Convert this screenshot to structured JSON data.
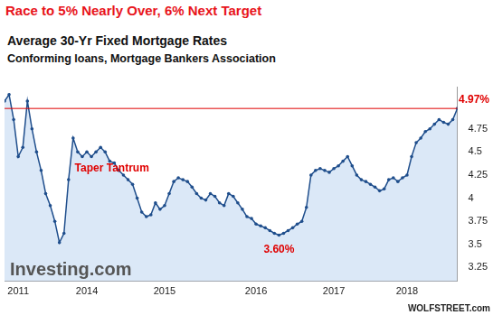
{
  "chart_data": {
    "type": "line",
    "title": "Race to 5% Nearly Over, 6% Next Target",
    "subtitle": [
      "Average 30-Yr Fixed Mortgage Rates",
      "Conforming loans, Mortgage Bankers Association"
    ],
    "categories": [
      null,
      null,
      null,
      "2011",
      null,
      null,
      null,
      null,
      null,
      null,
      null,
      null,
      null,
      null,
      null,
      null,
      null,
      null,
      "2014",
      null,
      null,
      null,
      null,
      null,
      null,
      null,
      null,
      null,
      null,
      null,
      null,
      null,
      null,
      null,
      null,
      "2015",
      null,
      null,
      null,
      null,
      null,
      null,
      null,
      null,
      null,
      null,
      null,
      null,
      null,
      null,
      null,
      null,
      null,
      null,
      null,
      "2016",
      null,
      null,
      null,
      null,
      null,
      null,
      null,
      null,
      null,
      null,
      null,
      null,
      null,
      null,
      null,
      null,
      "2017",
      null,
      null,
      null,
      null,
      null,
      null,
      null,
      null,
      null,
      null,
      null,
      null,
      null,
      null,
      null,
      "2018",
      null,
      null,
      null,
      null,
      null,
      null,
      null,
      null,
      null,
      null,
      null
    ],
    "values": [
      5.05,
      5.12,
      4.85,
      4.45,
      4.55,
      5.05,
      4.75,
      4.5,
      4.3,
      4.05,
      3.92,
      3.75,
      3.52,
      3.62,
      4.2,
      4.65,
      4.5,
      4.45,
      4.5,
      4.45,
      4.5,
      4.55,
      4.5,
      4.4,
      4.38,
      4.3,
      4.25,
      4.2,
      4.15,
      4.0,
      3.85,
      3.8,
      3.82,
      3.95,
      3.88,
      3.92,
      4.05,
      4.18,
      4.22,
      4.2,
      4.18,
      4.12,
      4.05,
      4.0,
      3.98,
      4.05,
      4.02,
      3.95,
      3.92,
      4.05,
      4.02,
      3.95,
      3.88,
      3.8,
      3.78,
      3.72,
      3.7,
      3.68,
      3.65,
      3.62,
      3.6,
      3.62,
      3.65,
      3.68,
      3.72,
      3.75,
      3.9,
      4.25,
      4.3,
      4.32,
      4.3,
      4.28,
      4.32,
      4.35,
      4.4,
      4.45,
      4.35,
      4.25,
      4.2,
      4.18,
      4.15,
      4.12,
      4.08,
      4.1,
      4.2,
      4.22,
      4.18,
      4.22,
      4.25,
      4.45,
      4.6,
      4.65,
      4.72,
      4.75,
      4.8,
      4.85,
      4.82,
      4.8,
      4.85,
      4.97
    ],
    "color": "#1f4e8c",
    "marker": "circle",
    "ylim": [
      3.1,
      5.2
    ],
    "yticks": [
      3.25,
      3.5,
      3.75,
      4,
      4.25,
      4.5,
      4.75
    ],
    "grid": false,
    "reference_line": {
      "value": 4.97,
      "label": "4.97%",
      "color": "#e00000"
    },
    "annotations": [
      {
        "text": "Taper Tantrum"
      },
      {
        "text": "3.60%",
        "value": 3.6
      }
    ],
    "source": "Investing.com",
    "credit": "WOLFSTREET.com"
  }
}
